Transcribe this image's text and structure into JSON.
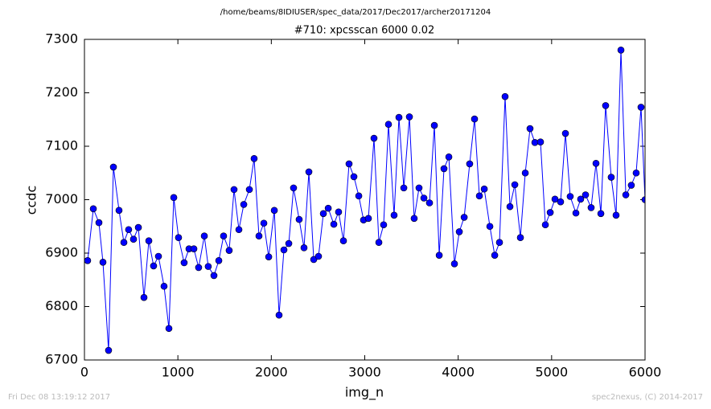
{
  "chart_data": {
    "type": "line",
    "suptitle": "/home/beams/8IDIUSER/spec_data/2017/Dec2017/archer20171204",
    "title": "#710: xpcsscan 6000 0.02",
    "xlabel": "img_n",
    "ylabel": "ccdc",
    "footer_left": "Fri Dec 08 13:19:12 2017",
    "footer_right": "spec2nexus, (C) 2014-2017",
    "xlim": [
      0,
      6000
    ],
    "xticks": [
      0,
      1000,
      2000,
      3000,
      4000,
      5000,
      6000
    ],
    "ylim": [
      6700,
      7300
    ],
    "yticks": [
      6700,
      6800,
      6900,
      7000,
      7100,
      7200,
      7300
    ],
    "color": "#0000ff",
    "x": [
      34,
      95,
      155,
      198,
      258,
      310,
      370,
      422,
      473,
      525,
      577,
      637,
      689,
      740,
      792,
      852,
      904,
      956,
      1007,
      1067,
      1119,
      1171,
      1222,
      1283,
      1325,
      1386,
      1438,
      1489,
      1549,
      1601,
      1653,
      1705,
      1765,
      1816,
      1868,
      1920,
      1972,
      2032,
      2083,
      2135,
      2187,
      2238,
      2298,
      2350,
      2402,
      2454,
      2505,
      2557,
      2609,
      2669,
      2720,
      2772,
      2832,
      2884,
      2936,
      2987,
      3039,
      3099,
      3151,
      3202,
      3254,
      3314,
      3366,
      3418,
      3478,
      3529,
      3581,
      3633,
      3693,
      3745,
      3797,
      3848,
      3900,
      3960,
      4012,
      4064,
      4123,
      4175,
      4227,
      4279,
      4339,
      4391,
      4442,
      4502,
      4554,
      4606,
      4666,
      4718,
      4769,
      4821,
      4881,
      4933,
      4985,
      5036,
      5096,
      5148,
      5199,
      5260,
      5311,
      5363,
      5423,
      5475,
      5527,
      5578,
      5638,
      5690,
      5742,
      5794,
      5853,
      5905,
      5957,
      6000
    ],
    "y": [
      6886,
      6983,
      6957,
      6883,
      6718,
      7061,
      6980,
      6920,
      6944,
      6926,
      6948,
      6817,
      6923,
      6876,
      6894,
      6838,
      6759,
      7004,
      6929,
      6882,
      6908,
      6908,
      6873,
      6932,
      6875,
      6858,
      6886,
      6932,
      6905,
      7019,
      6944,
      6991,
      7019,
      7077,
      6932,
      6956,
      6893,
      6980,
      6784,
      6906,
      6918,
      7022,
      6963,
      6910,
      7052,
      6888,
      6894,
      6974,
      6984,
      6954,
      6977,
      6923,
      7067,
      7043,
      7007,
      6962,
      6965,
      7115,
      6920,
      6953,
      7141,
      6971,
      7154,
      7022,
      7155,
      6965,
      7022,
      7003,
      6994,
      7139,
      6896,
      7058,
      7080,
      6880,
      6940,
      6967,
      7067,
      7151,
      7007,
      7020,
      6950,
      6896,
      6920,
      7193,
      6987,
      7028,
      6929,
      7050,
      7133,
      7107,
      7108,
      6953,
      6976,
      7001,
      6996,
      7124,
      7006,
      6975,
      7001,
      7009,
      6985,
      7068,
      6974,
      7176,
      7042,
      6971,
      7280,
      7009,
      7027,
      7050,
      7173,
      7000
    ]
  }
}
